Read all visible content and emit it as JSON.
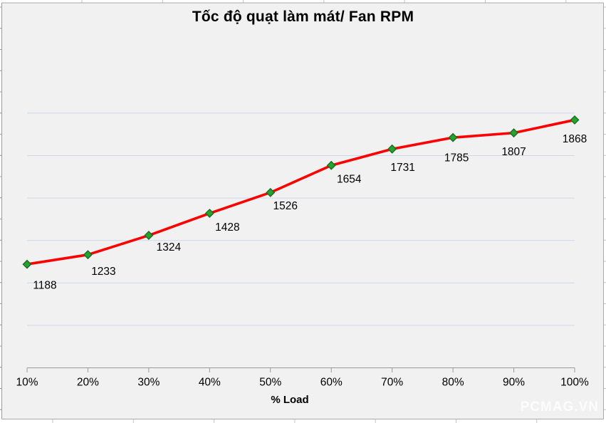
{
  "watermark": "PCMAG.VN",
  "chart_data": {
    "type": "line",
    "title": "Tốc độ quạt làm mát/ Fan RPM",
    "xlabel": "% Load",
    "ylabel": "",
    "categories": [
      "10%",
      "20%",
      "30%",
      "40%",
      "50%",
      "60%",
      "70%",
      "80%",
      "90%",
      "100%"
    ],
    "values": [
      1188,
      1233,
      1324,
      1428,
      1526,
      1654,
      1731,
      1785,
      1807,
      1868
    ],
    "data_labels": [
      1188,
      1233,
      1324,
      1428,
      1526,
      1654,
      1731,
      1785,
      1807,
      1868
    ],
    "ylim": [
      700,
      1900
    ],
    "y_major_unit": 200,
    "grid": true,
    "legend": "none",
    "colors": {
      "line": "#ff0000",
      "marker_fill": "#27a22d",
      "marker_border": "#1a6b24",
      "gridline": "#ccd9ea",
      "axis": "#9b9b9b",
      "chart_background": "#f1f1f1",
      "chart_border": "#a8a8a8",
      "text": "#000000"
    }
  }
}
